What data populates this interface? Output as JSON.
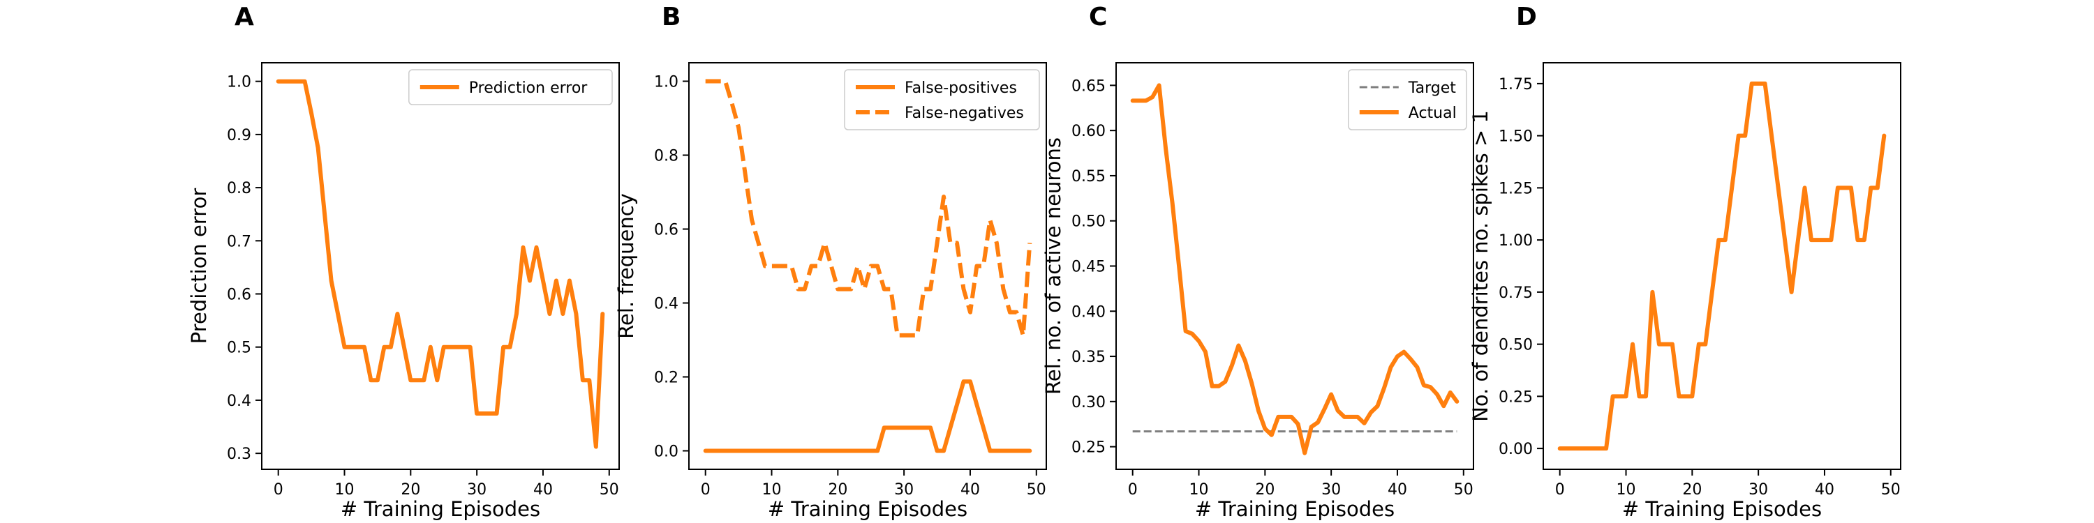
{
  "chart_data": [
    {
      "panel": "A",
      "type": "line",
      "xlabel": "# Training Episodes",
      "ylabel": "Prediction error",
      "xlim": [
        -2.5,
        51.5
      ],
      "ylim": [
        0.27,
        1.035
      ],
      "xticks": [
        0,
        10,
        20,
        30,
        40,
        50
      ],
      "yticks": [
        0.3,
        0.4,
        0.5,
        0.6,
        0.7,
        0.8,
        0.9,
        1.0
      ],
      "ytick_labels": [
        "0.3",
        "0.4",
        "0.5",
        "0.6",
        "0.7",
        "0.8",
        "0.9",
        "1.0"
      ],
      "legend": "top-right",
      "series": [
        {
          "name": "Prediction error",
          "color": "#ff7f0e",
          "style": "solid",
          "x": [
            0,
            1,
            2,
            3,
            4,
            5,
            6,
            7,
            8,
            9,
            10,
            11,
            12,
            13,
            14,
            15,
            16,
            17,
            18,
            19,
            20,
            21,
            22,
            23,
            24,
            25,
            26,
            27,
            28,
            29,
            30,
            31,
            32,
            33,
            34,
            35,
            36,
            37,
            38,
            39,
            40,
            41,
            42,
            43,
            44,
            45,
            46,
            47,
            48,
            49
          ],
          "y": [
            1.0,
            1.0,
            1.0,
            1.0,
            1.0,
            0.94,
            0.875,
            0.75,
            0.625,
            0.563,
            0.5,
            0.5,
            0.5,
            0.5,
            0.4375,
            0.4375,
            0.5,
            0.5,
            0.5625,
            0.5,
            0.4375,
            0.4375,
            0.4375,
            0.5,
            0.4375,
            0.5,
            0.5,
            0.5,
            0.5,
            0.5,
            0.375,
            0.375,
            0.375,
            0.375,
            0.5,
            0.5,
            0.5625,
            0.6875,
            0.625,
            0.6875,
            0.625,
            0.5625,
            0.625,
            0.5625,
            0.625,
            0.5625,
            0.4375,
            0.4375,
            0.3125,
            0.5625
          ]
        }
      ]
    },
    {
      "panel": "B",
      "type": "line",
      "xlabel": "# Training Episodes",
      "ylabel": "Rel. frequency",
      "xlim": [
        -2.5,
        51.5
      ],
      "ylim": [
        -0.05,
        1.05
      ],
      "xticks": [
        0,
        10,
        20,
        30,
        40,
        50
      ],
      "yticks": [
        0.0,
        0.2,
        0.4,
        0.6,
        0.8,
        1.0
      ],
      "ytick_labels": [
        "0.0",
        "0.2",
        "0.4",
        "0.6",
        "0.8",
        "1.0"
      ],
      "legend": "top-right",
      "series": [
        {
          "name": "False-positives",
          "color": "#ff7f0e",
          "style": "solid",
          "x": [
            0,
            1,
            2,
            3,
            4,
            5,
            6,
            7,
            8,
            9,
            10,
            11,
            12,
            13,
            14,
            15,
            16,
            17,
            18,
            19,
            20,
            21,
            22,
            23,
            24,
            25,
            26,
            27,
            28,
            29,
            30,
            31,
            32,
            33,
            34,
            35,
            36,
            37,
            38,
            39,
            40,
            41,
            42,
            43,
            44,
            45,
            46,
            47,
            48,
            49
          ],
          "y": [
            0,
            0,
            0,
            0,
            0,
            0,
            0,
            0,
            0,
            0,
            0,
            0,
            0,
            0,
            0,
            0,
            0,
            0,
            0,
            0,
            0,
            0,
            0,
            0,
            0,
            0,
            0,
            0.0625,
            0.0625,
            0.0625,
            0.0625,
            0.0625,
            0.0625,
            0.0625,
            0.0625,
            0,
            0,
            0.0625,
            0.125,
            0.1875,
            0.1875,
            0.125,
            0.0625,
            0,
            0,
            0,
            0,
            0,
            0,
            0
          ]
        },
        {
          "name": "False-negatives",
          "color": "#ff7f0e",
          "style": "dashed",
          "x": [
            0,
            1,
            2,
            3,
            4,
            5,
            6,
            7,
            8,
            9,
            10,
            11,
            12,
            13,
            14,
            15,
            16,
            17,
            18,
            19,
            20,
            21,
            22,
            23,
            24,
            25,
            26,
            27,
            28,
            29,
            30,
            31,
            32,
            33,
            34,
            35,
            36,
            37,
            38,
            39,
            40,
            41,
            42,
            43,
            44,
            45,
            46,
            47,
            48,
            49
          ],
          "y": [
            1.0,
            1.0,
            1.0,
            1.0,
            0.94,
            0.875,
            0.75,
            0.625,
            0.5625,
            0.5,
            0.5,
            0.5,
            0.5,
            0.5,
            0.4375,
            0.4375,
            0.5,
            0.5,
            0.5625,
            0.5,
            0.4375,
            0.4375,
            0.4375,
            0.5,
            0.4375,
            0.5,
            0.5,
            0.4375,
            0.4375,
            0.3125,
            0.3125,
            0.3125,
            0.3125,
            0.4375,
            0.4375,
            0.5625,
            0.6875,
            0.5625,
            0.5625,
            0.4375,
            0.375,
            0.5,
            0.5,
            0.625,
            0.5625,
            0.4375,
            0.375,
            0.375,
            0.3125,
            0.5625
          ]
        }
      ]
    },
    {
      "panel": "C",
      "type": "line",
      "xlabel": "# Training Episodes",
      "ylabel": "Rel. no. of active neurons",
      "xlim": [
        -2.5,
        51.5
      ],
      "ylim": [
        0.225,
        0.675
      ],
      "xticks": [
        0,
        10,
        20,
        30,
        40,
        50
      ],
      "yticks": [
        0.25,
        0.3,
        0.35,
        0.4,
        0.45,
        0.5,
        0.55,
        0.6,
        0.65
      ],
      "ytick_labels": [
        "0.25",
        "0.30",
        "0.35",
        "0.40",
        "0.45",
        "0.50",
        "0.55",
        "0.60",
        "0.65"
      ],
      "legend": "top-right",
      "series": [
        {
          "name": "Target",
          "color": "#7f7f7f",
          "style": "dashed",
          "x": [
            0,
            49
          ],
          "y": [
            0.267,
            0.267
          ]
        },
        {
          "name": "Actual",
          "color": "#ff7f0e",
          "style": "solid",
          "x": [
            0,
            1,
            2,
            3,
            4,
            5,
            6,
            7,
            8,
            9,
            10,
            11,
            12,
            13,
            14,
            15,
            16,
            17,
            18,
            19,
            20,
            21,
            22,
            23,
            24,
            25,
            26,
            27,
            28,
            29,
            30,
            31,
            32,
            33,
            34,
            35,
            36,
            37,
            38,
            39,
            40,
            41,
            42,
            43,
            44,
            45,
            46,
            47,
            48,
            49
          ],
          "y": [
            0.633,
            0.633,
            0.633,
            0.637,
            0.65,
            0.58,
            0.52,
            0.45,
            0.378,
            0.375,
            0.367,
            0.355,
            0.317,
            0.317,
            0.322,
            0.34,
            0.362,
            0.345,
            0.32,
            0.29,
            0.27,
            0.263,
            0.283,
            0.283,
            0.283,
            0.275,
            0.243,
            0.272,
            0.277,
            0.292,
            0.308,
            0.29,
            0.283,
            0.283,
            0.283,
            0.276,
            0.288,
            0.295,
            0.315,
            0.338,
            0.35,
            0.355,
            0.347,
            0.338,
            0.318,
            0.316,
            0.308,
            0.295,
            0.31,
            0.3
          ]
        }
      ]
    },
    {
      "panel": "D",
      "type": "line",
      "xlabel": "# Training Episodes",
      "ylabel": "No. of dendrites no. spikes > 1",
      "xlim": [
        -2.5,
        51.5
      ],
      "ylim": [
        -0.1,
        1.85
      ],
      "xticks": [
        0,
        10,
        20,
        30,
        40,
        50
      ],
      "yticks": [
        0.0,
        0.25,
        0.5,
        0.75,
        1.0,
        1.25,
        1.5,
        1.75
      ],
      "ytick_labels": [
        "0.00",
        "0.25",
        "0.50",
        "0.75",
        "1.00",
        "1.25",
        "1.50",
        "1.75"
      ],
      "legend": "none",
      "series": [
        {
          "name": "",
          "color": "#ff7f0e",
          "style": "solid",
          "x": [
            0,
            1,
            2,
            3,
            4,
            5,
            6,
            7,
            8,
            9,
            10,
            11,
            12,
            13,
            14,
            15,
            16,
            17,
            18,
            19,
            20,
            21,
            22,
            23,
            24,
            25,
            26,
            27,
            28,
            29,
            30,
            31,
            32,
            33,
            34,
            35,
            36,
            37,
            38,
            39,
            40,
            41,
            42,
            43,
            44,
            45,
            46,
            47,
            48,
            49
          ],
          "y": [
            0,
            0,
            0,
            0,
            0,
            0,
            0,
            0,
            0.25,
            0.25,
            0.25,
            0.5,
            0.25,
            0.25,
            0.75,
            0.5,
            0.5,
            0.5,
            0.25,
            0.25,
            0.25,
            0.5,
            0.5,
            0.75,
            1.0,
            1.0,
            1.25,
            1.5,
            1.5,
            1.75,
            1.75,
            1.75,
            1.5,
            1.25,
            1.0,
            0.75,
            1.0,
            1.25,
            1.0,
            1.0,
            1.0,
            1.0,
            1.25,
            1.25,
            1.25,
            1.0,
            1.0,
            1.25,
            1.25,
            1.5
          ]
        }
      ]
    }
  ]
}
